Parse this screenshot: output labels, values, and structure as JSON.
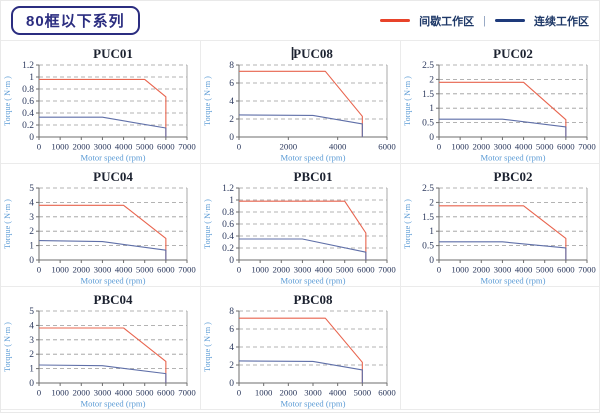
{
  "header": {
    "title": "80框以下系列",
    "legend": {
      "intermittent_label": "间歇工作区",
      "separator": "|",
      "continuous_label": "连续工作区"
    }
  },
  "colors": {
    "badge": "#2b2d80",
    "legend_intermittent": "#e8432a",
    "legend_continuous": "#1e3a7b",
    "chart_red": "#e8644e",
    "chart_blue": "#5f6fa8",
    "axis_label": "#5b9bd5",
    "tick_label": "#2d3a5e",
    "chart_title": "#1c2230",
    "axis_line": "#6e6e6e",
    "grid_line": "#9a9a9a",
    "plot_right_border": "#aaaaaa"
  },
  "chart_data": [
    {
      "type": "line",
      "title": "PUC01",
      "cursor": false,
      "xlabel": "Motor speed (rpm)",
      "ylabel": "Torque ( N·m )",
      "xlim": [
        0,
        7000
      ],
      "xtick_step": 1000,
      "ylim": [
        0,
        1.2
      ],
      "ytick_step": 0.2,
      "series": [
        {
          "name": "间歇工作区",
          "color_key": "chart_red",
          "points": [
            [
              0,
              0.96
            ],
            [
              5000,
              0.96
            ],
            [
              6000,
              0.67
            ],
            [
              6000,
              0
            ]
          ]
        },
        {
          "name": "连续工作区",
          "color_key": "chart_blue",
          "points": [
            [
              0,
              0.33
            ],
            [
              3000,
              0.33
            ],
            [
              6000,
              0.15
            ],
            [
              6000,
              0
            ]
          ]
        }
      ]
    },
    {
      "type": "line",
      "title": "PUC08",
      "cursor": true,
      "xlabel": "Motor speed (rpm)",
      "ylabel": "Torque ( N·m )",
      "xlim": [
        0,
        6000
      ],
      "xtick_step": 2000,
      "ylim": [
        0,
        8
      ],
      "ytick_step": 2,
      "series": [
        {
          "name": "间歇工作区",
          "color_key": "chart_red",
          "points": [
            [
              0,
              7.3
            ],
            [
              3500,
              7.3
            ],
            [
              5000,
              2.3
            ],
            [
              5000,
              0
            ]
          ]
        },
        {
          "name": "连续工作区",
          "color_key": "chart_blue",
          "points": [
            [
              0,
              2.45
            ],
            [
              3000,
              2.4
            ],
            [
              5000,
              1.45
            ],
            [
              5000,
              0
            ]
          ]
        }
      ]
    },
    {
      "type": "line",
      "title": "PUC02",
      "cursor": false,
      "xlabel": "Motor speed (rpm)",
      "ylabel": "Torque ( N·m )",
      "xlim": [
        0,
        7000
      ],
      "xtick_step": 1000,
      "ylim": [
        0,
        2.5
      ],
      "ytick_step": 0.5,
      "series": [
        {
          "name": "间歇工作区",
          "color_key": "chart_red",
          "points": [
            [
              0,
              1.9
            ],
            [
              4000,
              1.9
            ],
            [
              6000,
              0.6
            ],
            [
              6000,
              0
            ]
          ]
        },
        {
          "name": "连续工作区",
          "color_key": "chart_blue",
          "points": [
            [
              0,
              0.62
            ],
            [
              3000,
              0.62
            ],
            [
              6000,
              0.35
            ],
            [
              6000,
              0
            ]
          ]
        }
      ]
    },
    {
      "type": "line",
      "title": "PUC04",
      "cursor": false,
      "xlabel": "Motor speed (rpm)",
      "ylabel": "Torque ( N·m )",
      "xlim": [
        0,
        7000
      ],
      "xtick_step": 1000,
      "ylim": [
        0,
        5
      ],
      "ytick_step": 1,
      "series": [
        {
          "name": "间歇工作区",
          "color_key": "chart_red",
          "points": [
            [
              0,
              3.8
            ],
            [
              4000,
              3.8
            ],
            [
              6000,
              1.5
            ],
            [
              6000,
              0
            ]
          ]
        },
        {
          "name": "连续工作区",
          "color_key": "chart_blue",
          "points": [
            [
              0,
              1.35
            ],
            [
              3000,
              1.28
            ],
            [
              6000,
              0.68
            ],
            [
              6000,
              0
            ]
          ]
        }
      ]
    },
    {
      "type": "line",
      "title": "PBC01",
      "cursor": false,
      "xlabel": "Motor speed (rpm)",
      "ylabel": "Torque ( N·m )",
      "xlim": [
        0,
        7000
      ],
      "xtick_step": 1000,
      "ylim": [
        0,
        1.2
      ],
      "ytick_step": 0.2,
      "series": [
        {
          "name": "间歇工作区",
          "color_key": "chart_red",
          "points": [
            [
              0,
              0.98
            ],
            [
              5000,
              0.98
            ],
            [
              6000,
              0.45
            ],
            [
              6000,
              0
            ]
          ]
        },
        {
          "name": "连续工作区",
          "color_key": "chart_blue",
          "points": [
            [
              0,
              0.35
            ],
            [
              3000,
              0.35
            ],
            [
              6000,
              0.13
            ],
            [
              6000,
              0
            ]
          ]
        }
      ]
    },
    {
      "type": "line",
      "title": "PBC02",
      "cursor": false,
      "xlabel": "Motor speed (rpm)",
      "ylabel": "Torque ( N·m )",
      "xlim": [
        0,
        7000
      ],
      "xtick_step": 1000,
      "ylim": [
        0,
        2.5
      ],
      "ytick_step": 0.5,
      "series": [
        {
          "name": "间歇工作区",
          "color_key": "chart_red",
          "points": [
            [
              0,
              1.88
            ],
            [
              4000,
              1.88
            ],
            [
              6000,
              0.75
            ],
            [
              6000,
              0
            ]
          ]
        },
        {
          "name": "连续工作区",
          "color_key": "chart_blue",
          "points": [
            [
              0,
              0.63
            ],
            [
              3000,
              0.63
            ],
            [
              6000,
              0.42
            ],
            [
              6000,
              0
            ]
          ]
        }
      ]
    },
    {
      "type": "line",
      "title": "PBC04",
      "cursor": false,
      "xlabel": "Motor speed (rpm)",
      "ylabel": "Torque ( N·m )",
      "xlim": [
        0,
        7000
      ],
      "xtick_step": 1000,
      "ylim": [
        0,
        5
      ],
      "ytick_step": 1,
      "series": [
        {
          "name": "间歇工作区",
          "color_key": "chart_red",
          "points": [
            [
              0,
              3.82
            ],
            [
              4000,
              3.82
            ],
            [
              6000,
              1.5
            ],
            [
              6000,
              0
            ]
          ]
        },
        {
          "name": "连续工作区",
          "color_key": "chart_blue",
          "points": [
            [
              0,
              1.25
            ],
            [
              3000,
              1.2
            ],
            [
              6000,
              0.65
            ],
            [
              6000,
              0
            ]
          ]
        }
      ]
    },
    {
      "type": "line",
      "title": "PBC08",
      "cursor": false,
      "xlabel": "Motor speed (rpm)",
      "ylabel": "Torque ( N·m )",
      "xlim": [
        0,
        6000
      ],
      "xtick_step": 1000,
      "ylim": [
        0,
        8
      ],
      "ytick_step": 2,
      "series": [
        {
          "name": "间歇工作区",
          "color_key": "chart_red",
          "points": [
            [
              0,
              7.2
            ],
            [
              3500,
              7.2
            ],
            [
              5000,
              2.3
            ],
            [
              5000,
              0
            ]
          ]
        },
        {
          "name": "连续工作区",
          "color_key": "chart_blue",
          "points": [
            [
              0,
              2.45
            ],
            [
              3000,
              2.4
            ],
            [
              5000,
              1.45
            ],
            [
              5000,
              0
            ]
          ]
        }
      ]
    }
  ]
}
